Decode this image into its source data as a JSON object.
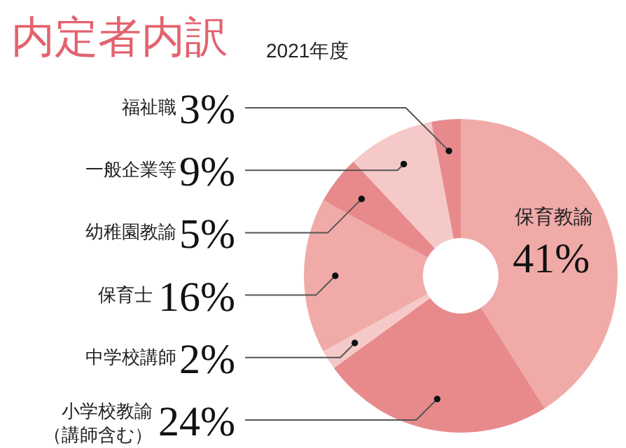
{
  "chart_data": {
    "type": "donut",
    "title": "内定者内訳",
    "subtitle": "2021年度",
    "categories": [
      "保育教諭",
      "小学校教諭（講師含む）",
      "中学校講師",
      "保育士",
      "幼稚園教諭",
      "一般企業等",
      "福祉職"
    ],
    "values": [
      41,
      24,
      2,
      16,
      5,
      9,
      3
    ],
    "value_labels": [
      "41%",
      "24%",
      "2%",
      "16%",
      "5%",
      "9%",
      "3%"
    ],
    "colors": [
      "#f0aaa8",
      "#e88a8c",
      "#f5c9c8",
      "#f0aaa8",
      "#e88a8c",
      "#f5c9c8",
      "#e88a8c"
    ]
  }
}
